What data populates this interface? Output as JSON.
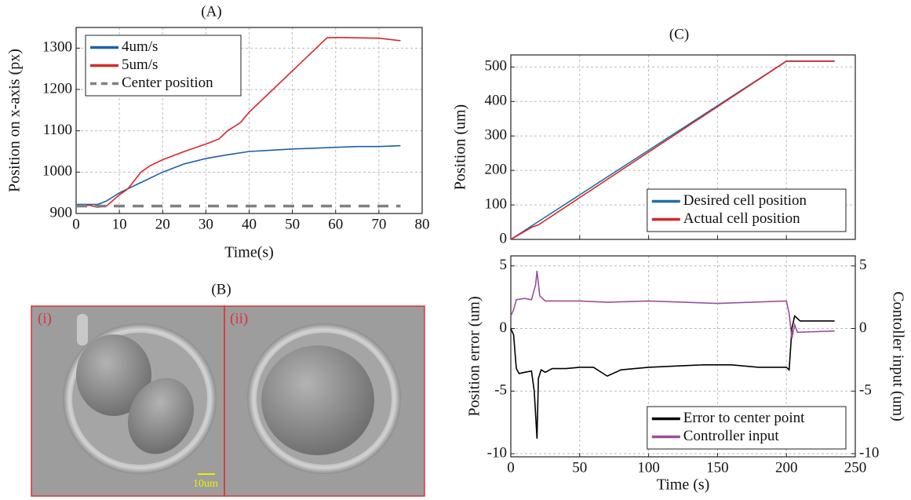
{
  "chart_data": [
    {
      "type": "line",
      "title": "(A)",
      "xlabel": "Time(s)",
      "ylabel": "Position on x-axis (px)",
      "xlim": [
        0,
        80
      ],
      "xticks": [
        0,
        10,
        20,
        30,
        40,
        50,
        60,
        70,
        80
      ],
      "ylim": [
        900,
        1350
      ],
      "yticks": [
        900,
        1000,
        1100,
        1200,
        1300
      ],
      "grid": true,
      "legend": "upper left",
      "series": [
        {
          "name": "4um/s",
          "color": "#1f5fa8",
          "linestyle": "solid",
          "x": [
            0,
            5,
            7,
            10,
            15,
            20,
            25,
            30,
            35,
            40,
            45,
            50,
            55,
            60,
            65,
            70,
            75
          ],
          "values": [
            922,
            922,
            930,
            950,
            975,
            1000,
            1020,
            1033,
            1042,
            1050,
            1053,
            1056,
            1058,
            1060,
            1062,
            1062,
            1064
          ]
        },
        {
          "name": "5um/s",
          "color": "#d62728",
          "linestyle": "solid",
          "x": [
            0,
            3,
            5,
            7,
            10,
            12,
            15,
            17,
            20,
            25,
            30,
            33,
            35,
            38,
            40,
            45,
            50,
            55,
            57,
            58,
            60,
            65,
            70,
            75
          ],
          "values": [
            918,
            920,
            915,
            918,
            945,
            960,
            1000,
            1015,
            1030,
            1050,
            1068,
            1080,
            1100,
            1120,
            1145,
            1195,
            1245,
            1295,
            1315,
            1325,
            1326,
            1325,
            1324,
            1318
          ]
        },
        {
          "name": "Center position",
          "color": "#808080",
          "linestyle": "dashed",
          "x": [
            0,
            75
          ],
          "values": [
            918,
            918
          ]
        }
      ]
    },
    {
      "type": "line",
      "title": "(C)",
      "ylabel": "Position (um)",
      "xlim": [
        0,
        250
      ],
      "xticks": [
        0,
        50,
        100,
        150,
        200,
        250
      ],
      "ylim": [
        0,
        535
      ],
      "yticks": [
        0,
        100,
        200,
        300,
        400,
        500
      ],
      "grid": true,
      "legend": "lower right",
      "series": [
        {
          "name": "Desired cell position",
          "color": "#1f6fa8",
          "linestyle": "solid",
          "x": [
            0,
            200,
            235
          ],
          "values": [
            0,
            517,
            517
          ]
        },
        {
          "name": "Actual cell position",
          "color": "#d62728",
          "linestyle": "solid",
          "x": [
            0,
            15,
            20,
            200,
            235
          ],
          "values": [
            0,
            35,
            42,
            517,
            517
          ]
        }
      ]
    },
    {
      "type": "line",
      "xlabel": "Time (s)",
      "ylabel": "Position error (um)",
      "y2label": "Contoller input (um)",
      "xlim": [
        0,
        250
      ],
      "xticks": [
        0,
        50,
        100,
        150,
        200,
        250
      ],
      "ylim": [
        -10.25,
        5.8
      ],
      "yticks": [
        -10,
        -5,
        0,
        5
      ],
      "y2lim": [
        -10.25,
        5.8
      ],
      "y2ticks": [
        -10,
        -5,
        0,
        5
      ],
      "grid": true,
      "legend": "lower right",
      "series": [
        {
          "name": "Error to center point",
          "color": "#000000",
          "linestyle": "solid",
          "x": [
            0,
            2,
            4,
            6,
            10,
            15,
            17,
            19,
            20,
            22,
            25,
            30,
            40,
            50,
            60,
            70,
            80,
            100,
            120,
            140,
            160,
            180,
            200,
            202,
            204,
            206,
            210,
            235
          ],
          "values": [
            0,
            -0.5,
            -3.2,
            -3.6,
            -3.5,
            -3.4,
            -5,
            -8.8,
            -4,
            -3.3,
            -3.5,
            -3.2,
            -3.2,
            -3.1,
            -3.1,
            -3.8,
            -3.3,
            -3.1,
            -3.0,
            -2.9,
            -2.9,
            -3.1,
            -3.1,
            -3.3,
            0,
            1,
            0.6,
            0.6
          ]
        },
        {
          "name": "Controller input",
          "color": "#9b4f9b",
          "linestyle": "solid",
          "axis": "y2",
          "x": [
            0,
            2,
            4,
            10,
            15,
            18,
            19,
            21,
            25,
            50,
            70,
            100,
            150,
            200,
            202,
            204,
            206,
            208,
            235
          ],
          "values": [
            1.0,
            1.5,
            2.3,
            2.4,
            2.3,
            3.5,
            4.6,
            2.6,
            2.2,
            2.2,
            2.1,
            2.2,
            2.0,
            2.2,
            1.2,
            -0.8,
            0.3,
            -0.3,
            -0.2
          ]
        }
      ]
    }
  ],
  "panel_b": {
    "title": "(B)",
    "images": [
      {
        "label": "(i)"
      },
      {
        "label": "(ii)"
      }
    ],
    "scale_bar": "10um"
  }
}
